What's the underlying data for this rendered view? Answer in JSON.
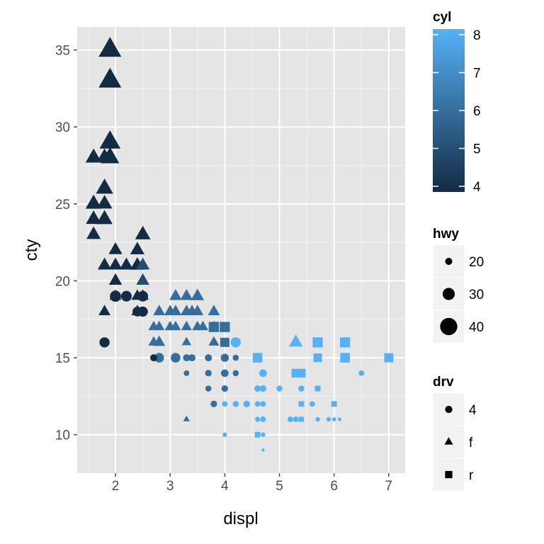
{
  "chart_data": {
    "type": "scatter",
    "xlabel": "displ",
    "ylabel": "cty",
    "xlim": [
      1.3,
      7.3
    ],
    "ylim": [
      7.5,
      36.5
    ],
    "x_ticks": [
      2,
      3,
      4,
      5,
      6,
      7
    ],
    "y_ticks": [
      10,
      15,
      20,
      25,
      30,
      35
    ],
    "grid": true,
    "legends": {
      "color": {
        "title": "cyl",
        "min": 4,
        "max": 8,
        "ticks": [
          4,
          5,
          6,
          7,
          8
        ],
        "low_color": "#132B43",
        "high_color": "#56B1F7"
      },
      "size": {
        "title": "hwy",
        "entries": [
          20,
          30,
          40
        ]
      },
      "shape": {
        "title": "drv",
        "entries": [
          {
            "label": "4",
            "shape": "circle"
          },
          {
            "label": "f",
            "shape": "triangle"
          },
          {
            "label": "r",
            "shape": "square"
          }
        ]
      }
    },
    "points": [
      {
        "x": 1.9,
        "y": 35,
        "cyl": 4,
        "hwy": 44,
        "drv": "f"
      },
      {
        "x": 1.9,
        "y": 33,
        "cyl": 4,
        "hwy": 44,
        "drv": "f"
      },
      {
        "x": 1.9,
        "y": 29,
        "cyl": 4,
        "hwy": 41,
        "drv": "f"
      },
      {
        "x": 1.9,
        "y": 28,
        "cyl": 4,
        "hwy": 37,
        "drv": "f"
      },
      {
        "x": 1.6,
        "y": 28,
        "cyl": 4,
        "hwy": 33,
        "drv": "f"
      },
      {
        "x": 1.8,
        "y": 28,
        "cyl": 4,
        "hwy": 33,
        "drv": "f"
      },
      {
        "x": 1.8,
        "y": 26,
        "cyl": 4,
        "hwy": 35,
        "drv": "f"
      },
      {
        "x": 1.6,
        "y": 25,
        "cyl": 4,
        "hwy": 33,
        "drv": "f"
      },
      {
        "x": 1.8,
        "y": 25,
        "cyl": 4,
        "hwy": 32,
        "drv": "f"
      },
      {
        "x": 1.6,
        "y": 24,
        "cyl": 4,
        "hwy": 32,
        "drv": "f"
      },
      {
        "x": 1.8,
        "y": 24,
        "cyl": 4,
        "hwy": 33,
        "drv": "f"
      },
      {
        "x": 1.6,
        "y": 23,
        "cyl": 4,
        "hwy": 30,
        "drv": "f"
      },
      {
        "x": 2.5,
        "y": 23,
        "cyl": 4,
        "hwy": 32,
        "drv": "f"
      },
      {
        "x": 2.0,
        "y": 22,
        "cyl": 4,
        "hwy": 29,
        "drv": "f"
      },
      {
        "x": 2.4,
        "y": 22,
        "cyl": 4,
        "hwy": 30,
        "drv": "f"
      },
      {
        "x": 1.8,
        "y": 21,
        "cyl": 4,
        "hwy": 29,
        "drv": "f"
      },
      {
        "x": 2.0,
        "y": 21,
        "cyl": 4,
        "hwy": 29,
        "drv": "f"
      },
      {
        "x": 2.2,
        "y": 21,
        "cyl": 4,
        "hwy": 29,
        "drv": "f"
      },
      {
        "x": 2.4,
        "y": 21,
        "cyl": 4,
        "hwy": 30,
        "drv": "f"
      },
      {
        "x": 2.5,
        "y": 21,
        "cyl": 5,
        "hwy": 29,
        "drv": "f"
      },
      {
        "x": 2.0,
        "y": 20,
        "cyl": 4,
        "hwy": 28,
        "drv": "f"
      },
      {
        "x": 2.5,
        "y": 20,
        "cyl": 5,
        "hwy": 28,
        "drv": "f"
      },
      {
        "x": 2.0,
        "y": 19,
        "cyl": 4,
        "hwy": 26,
        "drv": "f"
      },
      {
        "x": 2.4,
        "y": 19,
        "cyl": 4,
        "hwy": 26,
        "drv": "f"
      },
      {
        "x": 2.5,
        "y": 19,
        "cyl": 4,
        "hwy": 26,
        "drv": "f"
      },
      {
        "x": 1.8,
        "y": 18,
        "cyl": 4,
        "hwy": 26,
        "drv": "f"
      },
      {
        "x": 2.4,
        "y": 18,
        "cyl": 4,
        "hwy": 26,
        "drv": "f"
      },
      {
        "x": 2.0,
        "y": 19,
        "cyl": 4,
        "hwy": 28,
        "drv": "4"
      },
      {
        "x": 2.2,
        "y": 19,
        "cyl": 4,
        "hwy": 27,
        "drv": "4"
      },
      {
        "x": 2.5,
        "y": 19,
        "cyl": 4,
        "hwy": 27,
        "drv": "4"
      },
      {
        "x": 2.5,
        "y": 18,
        "cyl": 4,
        "hwy": 26,
        "drv": "4"
      },
      {
        "x": 2.4,
        "y": 18,
        "cyl": 4,
        "hwy": 25,
        "drv": "4"
      },
      {
        "x": 1.8,
        "y": 16,
        "cyl": 4,
        "hwy": 26,
        "drv": "4"
      },
      {
        "x": 2.7,
        "y": 15,
        "cyl": 4,
        "hwy": 20,
        "drv": "4"
      },
      {
        "x": 2.8,
        "y": 16,
        "cyl": 6,
        "hwy": 26,
        "drv": "f"
      },
      {
        "x": 2.8,
        "y": 18,
        "cyl": 6,
        "hwy": 26,
        "drv": "f"
      },
      {
        "x": 3.0,
        "y": 18,
        "cyl": 6,
        "hwy": 26,
        "drv": "f"
      },
      {
        "x": 3.1,
        "y": 18,
        "cyl": 6,
        "hwy": 26,
        "drv": "f"
      },
      {
        "x": 3.3,
        "y": 19,
        "cyl": 6,
        "hwy": 27,
        "drv": "f"
      },
      {
        "x": 3.5,
        "y": 19,
        "cyl": 6,
        "hwy": 28,
        "drv": "f"
      },
      {
        "x": 3.1,
        "y": 19,
        "cyl": 6,
        "hwy": 27,
        "drv": "f"
      },
      {
        "x": 3.3,
        "y": 18,
        "cyl": 6,
        "hwy": 26,
        "drv": "f"
      },
      {
        "x": 3.5,
        "y": 18,
        "cyl": 6,
        "hwy": 26,
        "drv": "f"
      },
      {
        "x": 3.8,
        "y": 18,
        "cyl": 6,
        "hwy": 26,
        "drv": "f"
      },
      {
        "x": 3.4,
        "y": 18,
        "cyl": 6,
        "hwy": 26,
        "drv": "f"
      },
      {
        "x": 2.7,
        "y": 17,
        "cyl": 6,
        "hwy": 24,
        "drv": "f"
      },
      {
        "x": 2.8,
        "y": 17,
        "cyl": 6,
        "hwy": 24,
        "drv": "f"
      },
      {
        "x": 3.0,
        "y": 17,
        "cyl": 6,
        "hwy": 24,
        "drv": "f"
      },
      {
        "x": 3.1,
        "y": 17,
        "cyl": 6,
        "hwy": 24,
        "drv": "f"
      },
      {
        "x": 3.3,
        "y": 17,
        "cyl": 6,
        "hwy": 24,
        "drv": "f"
      },
      {
        "x": 3.5,
        "y": 17,
        "cyl": 6,
        "hwy": 24,
        "drv": "f"
      },
      {
        "x": 3.6,
        "y": 17,
        "cyl": 6,
        "hwy": 24,
        "drv": "f"
      },
      {
        "x": 3.8,
        "y": 17,
        "cyl": 6,
        "hwy": 24,
        "drv": "f"
      },
      {
        "x": 2.7,
        "y": 16,
        "cyl": 6,
        "hwy": 24,
        "drv": "f"
      },
      {
        "x": 3.3,
        "y": 16,
        "cyl": 6,
        "hwy": 22,
        "drv": "f"
      },
      {
        "x": 3.8,
        "y": 16,
        "cyl": 6,
        "hwy": 24,
        "drv": "f"
      },
      {
        "x": 3.8,
        "y": 17,
        "cyl": 6,
        "hwy": 26,
        "drv": "r"
      },
      {
        "x": 4.0,
        "y": 17,
        "cyl": 6,
        "hwy": 26,
        "drv": "r"
      },
      {
        "x": 4.0,
        "y": 16,
        "cyl": 6,
        "hwy": 24,
        "drv": "r"
      },
      {
        "x": 3.3,
        "y": 11,
        "cyl": 6,
        "hwy": 17,
        "drv": "f"
      },
      {
        "x": 2.8,
        "y": 15,
        "cyl": 6,
        "hwy": 25,
        "drv": "4"
      },
      {
        "x": 3.1,
        "y": 15,
        "cyl": 6,
        "hwy": 25,
        "drv": "4"
      },
      {
        "x": 3.3,
        "y": 15,
        "cyl": 6,
        "hwy": 20,
        "drv": "4"
      },
      {
        "x": 3.4,
        "y": 15,
        "cyl": 6,
        "hwy": 20,
        "drv": "4"
      },
      {
        "x": 3.3,
        "y": 14,
        "cyl": 6,
        "hwy": 17,
        "drv": "4"
      },
      {
        "x": 3.7,
        "y": 15,
        "cyl": 6,
        "hwy": 20,
        "drv": "4"
      },
      {
        "x": 3.7,
        "y": 14,
        "cyl": 6,
        "hwy": 19,
        "drv": "4"
      },
      {
        "x": 3.7,
        "y": 13,
        "cyl": 6,
        "hwy": 18,
        "drv": "4"
      },
      {
        "x": 3.8,
        "y": 12,
        "cyl": 6,
        "hwy": 19,
        "drv": "4"
      },
      {
        "x": 4.0,
        "y": 15,
        "cyl": 6,
        "hwy": 22,
        "drv": "4"
      },
      {
        "x": 4.0,
        "y": 14,
        "cyl": 6,
        "hwy": 21,
        "drv": "4"
      },
      {
        "x": 4.0,
        "y": 13,
        "cyl": 6,
        "hwy": 19,
        "drv": "4"
      },
      {
        "x": 4.0,
        "y": 16,
        "cyl": 6,
        "hwy": 21,
        "drv": "4"
      },
      {
        "x": 4.2,
        "y": 15,
        "cyl": 6,
        "hwy": 18,
        "drv": "4"
      },
      {
        "x": 4.2,
        "y": 14,
        "cyl": 6,
        "hwy": 18,
        "drv": "4"
      },
      {
        "x": 4.2,
        "y": 16,
        "cyl": 8,
        "hwy": 26,
        "drv": "4"
      },
      {
        "x": 4.6,
        "y": 15,
        "cyl": 8,
        "hwy": 25,
        "drv": "r"
      },
      {
        "x": 4.6,
        "y": 13,
        "cyl": 8,
        "hwy": 19,
        "drv": "4"
      },
      {
        "x": 4.6,
        "y": 11,
        "cyl": 8,
        "hwy": 16,
        "drv": "4"
      },
      {
        "x": 4.6,
        "y": 10,
        "cyl": 8,
        "hwy": 17,
        "drv": "r"
      },
      {
        "x": 4.7,
        "y": 14,
        "cyl": 8,
        "hwy": 21,
        "drv": "4"
      },
      {
        "x": 4.7,
        "y": 13,
        "cyl": 8,
        "hwy": 19,
        "drv": "4"
      },
      {
        "x": 4.7,
        "y": 12,
        "cyl": 8,
        "hwy": 17,
        "drv": "4"
      },
      {
        "x": 4.7,
        "y": 11,
        "cyl": 8,
        "hwy": 17,
        "drv": "4"
      },
      {
        "x": 4.7,
        "y": 10,
        "cyl": 8,
        "hwy": 15,
        "drv": "4"
      },
      {
        "x": 4.7,
        "y": 9,
        "cyl": 8,
        "hwy": 12,
        "drv": "4"
      },
      {
        "x": 4.2,
        "y": 12,
        "cyl": 8,
        "hwy": 18,
        "drv": "4"
      },
      {
        "x": 4.4,
        "y": 12,
        "cyl": 8,
        "hwy": 19,
        "drv": "4"
      },
      {
        "x": 4.0,
        "y": 12,
        "cyl": 8,
        "hwy": 17,
        "drv": "4"
      },
      {
        "x": 4.0,
        "y": 10,
        "cyl": 8,
        "hwy": 15,
        "drv": "4"
      },
      {
        "x": 4.6,
        "y": 12,
        "cyl": 8,
        "hwy": 17,
        "drv": "4"
      },
      {
        "x": 5.0,
        "y": 13,
        "cyl": 8,
        "hwy": 18,
        "drv": "4"
      },
      {
        "x": 5.2,
        "y": 11,
        "cyl": 8,
        "hwy": 17,
        "drv": "4"
      },
      {
        "x": 5.3,
        "y": 11,
        "cyl": 8,
        "hwy": 17,
        "drv": "4"
      },
      {
        "x": 5.4,
        "y": 13,
        "cyl": 8,
        "hwy": 18,
        "drv": "4"
      },
      {
        "x": 5.4,
        "y": 12,
        "cyl": 8,
        "hwy": 17,
        "drv": "4"
      },
      {
        "x": 5.4,
        "y": 14,
        "cyl": 8,
        "hwy": 23,
        "drv": "r"
      },
      {
        "x": 5.3,
        "y": 14,
        "cyl": 8,
        "hwy": 23,
        "drv": "r"
      },
      {
        "x": 5.4,
        "y": 11,
        "cyl": 8,
        "hwy": 16,
        "drv": "r"
      },
      {
        "x": 5.4,
        "y": 12,
        "cyl": 8,
        "hwy": 17,
        "drv": "r"
      },
      {
        "x": 5.3,
        "y": 16,
        "cyl": 8,
        "hwy": 29,
        "drv": "f"
      },
      {
        "x": 5.6,
        "y": 12,
        "cyl": 8,
        "hwy": 17,
        "drv": "4"
      },
      {
        "x": 5.7,
        "y": 13,
        "cyl": 8,
        "hwy": 17,
        "drv": "4"
      },
      {
        "x": 5.7,
        "y": 11,
        "cyl": 8,
        "hwy": 15,
        "drv": "4"
      },
      {
        "x": 5.7,
        "y": 13,
        "cyl": 8,
        "hwy": 17,
        "drv": "r"
      },
      {
        "x": 5.7,
        "y": 16,
        "cyl": 8,
        "hwy": 26,
        "drv": "r"
      },
      {
        "x": 5.7,
        "y": 15,
        "cyl": 8,
        "hwy": 23,
        "drv": "r"
      },
      {
        "x": 5.9,
        "y": 11,
        "cyl": 8,
        "hwy": 15,
        "drv": "4"
      },
      {
        "x": 6.0,
        "y": 11,
        "cyl": 8,
        "hwy": 14,
        "drv": "4"
      },
      {
        "x": 6.1,
        "y": 11,
        "cyl": 8,
        "hwy": 13,
        "drv": "4"
      },
      {
        "x": 6.0,
        "y": 12,
        "cyl": 8,
        "hwy": 17,
        "drv": "r"
      },
      {
        "x": 6.2,
        "y": 16,
        "cyl": 8,
        "hwy": 26,
        "drv": "r"
      },
      {
        "x": 6.2,
        "y": 15,
        "cyl": 8,
        "hwy": 25,
        "drv": "r"
      },
      {
        "x": 6.5,
        "y": 14,
        "cyl": 8,
        "hwy": 17,
        "drv": "4"
      },
      {
        "x": 7.0,
        "y": 15,
        "cyl": 8,
        "hwy": 24,
        "drv": "r"
      }
    ]
  }
}
